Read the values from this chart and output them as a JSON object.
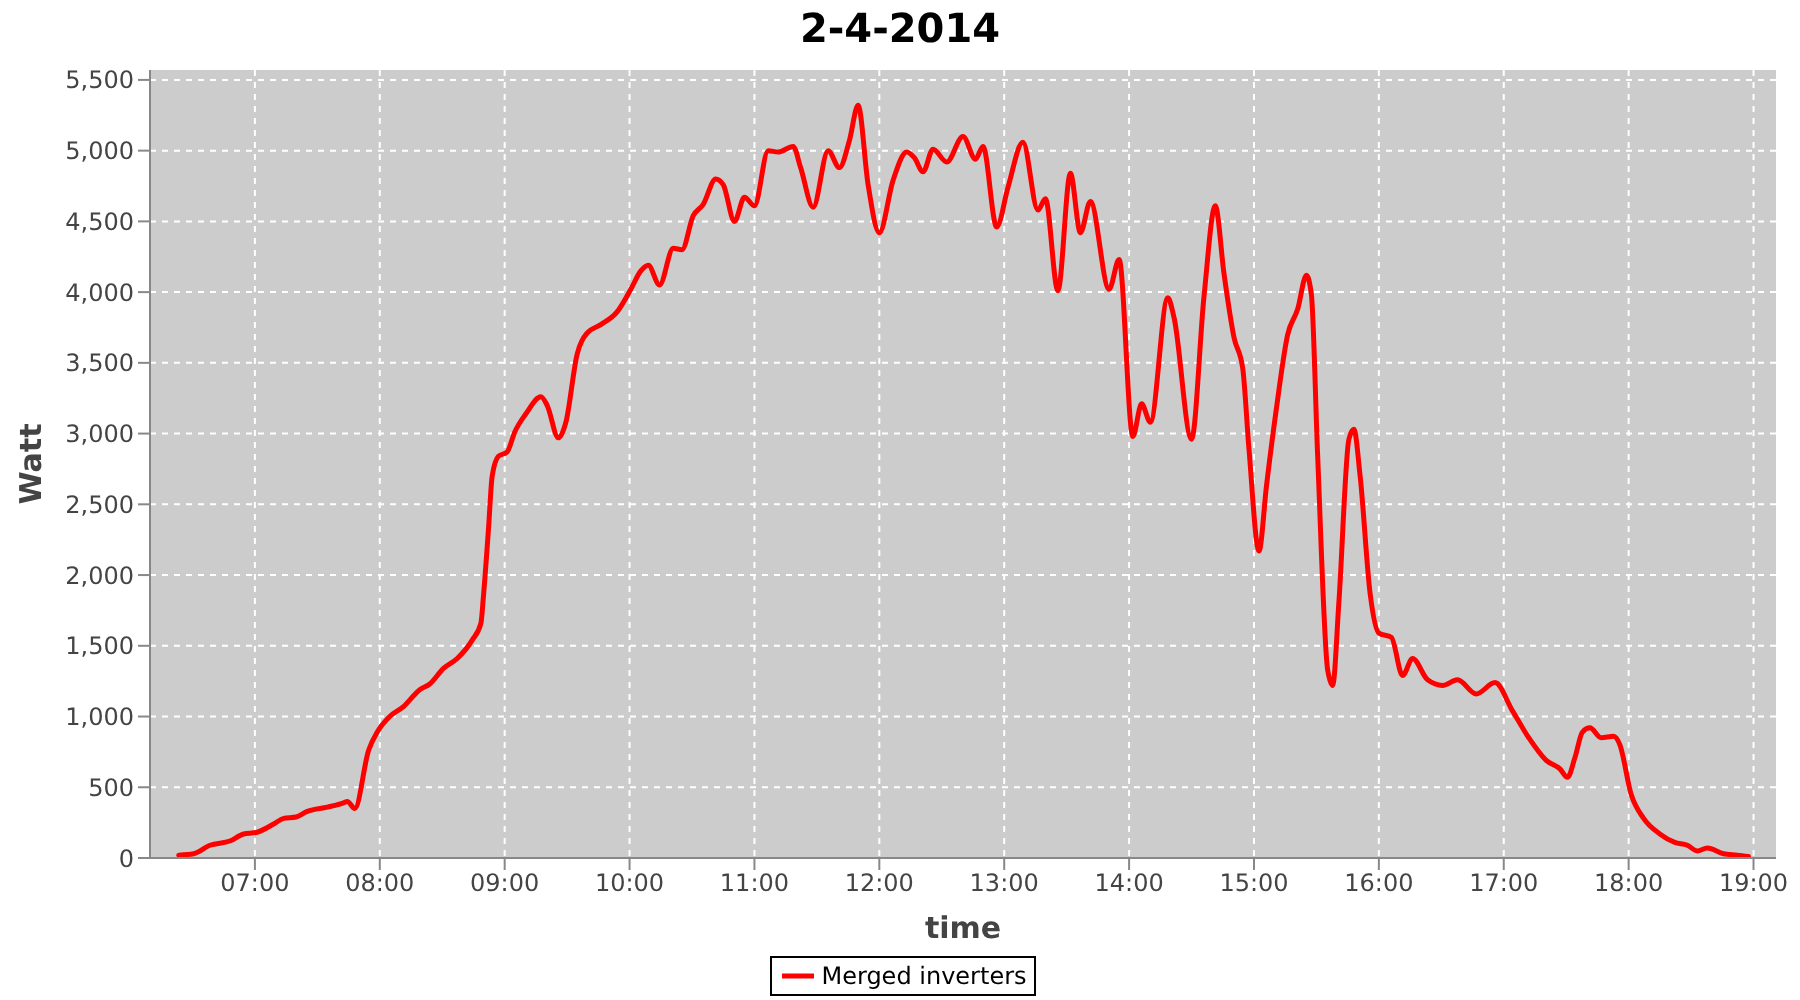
{
  "chart_data": {
    "type": "line",
    "title": "2-4-2014",
    "xlabel": "time",
    "ylabel": "Watt",
    "x": [
      6.39,
      6.51,
      6.64,
      6.8,
      6.91,
      7.01,
      7.15,
      7.23,
      7.33,
      7.42,
      7.58,
      7.71,
      7.74,
      7.8,
      7.91,
      7.98,
      8.08,
      8.19,
      8.32,
      8.4,
      8.51,
      8.62,
      8.74,
      8.81,
      8.83,
      8.87,
      8.9,
      8.95,
      9.02,
      9.08,
      9.17,
      9.29,
      9.34,
      9.43,
      9.49,
      9.58,
      9.66,
      9.77,
      9.9,
      10.01,
      10.09,
      10.15,
      10.24,
      10.35,
      10.42,
      10.51,
      10.59,
      10.69,
      10.75,
      10.84,
      10.92,
      11.0,
      11.11,
      11.19,
      11.31,
      11.37,
      11.47,
      11.59,
      11.68,
      11.76,
      11.83,
      11.91,
      12.0,
      12.11,
      12.22,
      12.28,
      12.35,
      12.43,
      12.54,
      12.67,
      12.77,
      12.83,
      12.94,
      13.03,
      13.15,
      13.27,
      13.33,
      13.43,
      13.53,
      13.61,
      13.69,
      13.84,
      13.92,
      14.03,
      14.1,
      14.17,
      14.31,
      14.36,
      14.5,
      14.6,
      14.69,
      14.76,
      14.84,
      14.91,
      14.96,
      15.04,
      15.1,
      15.18,
      15.27,
      15.35,
      15.42,
      15.46,
      15.51,
      15.59,
      15.63,
      15.68,
      15.76,
      15.8,
      15.85,
      15.93,
      16.0,
      16.1,
      16.19,
      16.27,
      16.39,
      16.51,
      16.63,
      16.78,
      16.93,
      17.07,
      17.2,
      17.34,
      17.45,
      17.51,
      17.57,
      17.63,
      17.69,
      17.78,
      17.88,
      17.93,
      18.02,
      18.12,
      18.25,
      18.37,
      18.47,
      18.55,
      18.63,
      18.76,
      18.87,
      18.96
    ],
    "series": [
      {
        "name": "Merged inverters",
        "color": "#ff0000",
        "values": [
          20,
          30,
          90,
          120,
          170,
          180,
          240,
          280,
          290,
          330,
          360,
          390,
          400,
          350,
          760,
          890,
          1000,
          1070,
          1190,
          1230,
          1340,
          1410,
          1540,
          1660,
          1850,
          2320,
          2700,
          2840,
          2870,
          3010,
          3140,
          3260,
          3200,
          2970,
          3080,
          3560,
          3710,
          3770,
          3860,
          4020,
          4150,
          4190,
          4050,
          4310,
          4300,
          4540,
          4620,
          4800,
          4760,
          4500,
          4670,
          4610,
          5000,
          4990,
          5030,
          4880,
          4600,
          5000,
          4880,
          5070,
          5320,
          4760,
          4420,
          4790,
          4990,
          4950,
          4850,
          5010,
          4920,
          5100,
          4940,
          5030,
          4460,
          4740,
          5060,
          4580,
          4660,
          4010,
          4840,
          4420,
          4640,
          4020,
          4230,
          2980,
          3210,
          3080,
          3960,
          3820,
          2960,
          3970,
          4610,
          4130,
          3680,
          3460,
          2890,
          2170,
          2630,
          3180,
          3700,
          3880,
          4120,
          3980,
          2840,
          1330,
          1220,
          1810,
          2960,
          3030,
          2700,
          1870,
          1590,
          1560,
          1290,
          1410,
          1260,
          1220,
          1260,
          1160,
          1240,
          1040,
          850,
          690,
          630,
          570,
          710,
          890,
          920,
          850,
          860,
          800,
          450,
          280,
          170,
          110,
          90,
          50,
          70,
          30,
          20,
          10
        ]
      }
    ],
    "xlim": [
      6.16,
      19.18
    ],
    "xticks": [
      {
        "value": 7,
        "label": "07:00"
      },
      {
        "value": 8,
        "label": "08:00"
      },
      {
        "value": 9,
        "label": "09:00"
      },
      {
        "value": 10,
        "label": "10:00"
      },
      {
        "value": 11,
        "label": "11:00"
      },
      {
        "value": 12,
        "label": "12:00"
      },
      {
        "value": 13,
        "label": "13:00"
      },
      {
        "value": 14,
        "label": "14:00"
      },
      {
        "value": 15,
        "label": "15:00"
      },
      {
        "value": 16,
        "label": "16:00"
      },
      {
        "value": 17,
        "label": "17:00"
      },
      {
        "value": 18,
        "label": "18:00"
      },
      {
        "value": 19,
        "label": "19:00"
      }
    ],
    "ylim": [
      0,
      5570
    ],
    "yticks": [
      0,
      500,
      {
        "value": 1000,
        "label": "1,000"
      },
      {
        "value": 1500,
        "label": "1,500"
      },
      {
        "value": 2000,
        "label": "2,000"
      },
      {
        "value": 2500,
        "label": "2,500"
      },
      {
        "value": 3000,
        "label": "3,000"
      },
      {
        "value": 3500,
        "label": "3,500"
      },
      {
        "value": 4000,
        "label": "4,000"
      },
      {
        "value": 4500,
        "label": "4,500"
      },
      {
        "value": 5000,
        "label": "5,000"
      },
      {
        "value": 5500,
        "label": "5,500"
      }
    ],
    "grid": true,
    "legend": "bottom",
    "line_style": "solid"
  }
}
